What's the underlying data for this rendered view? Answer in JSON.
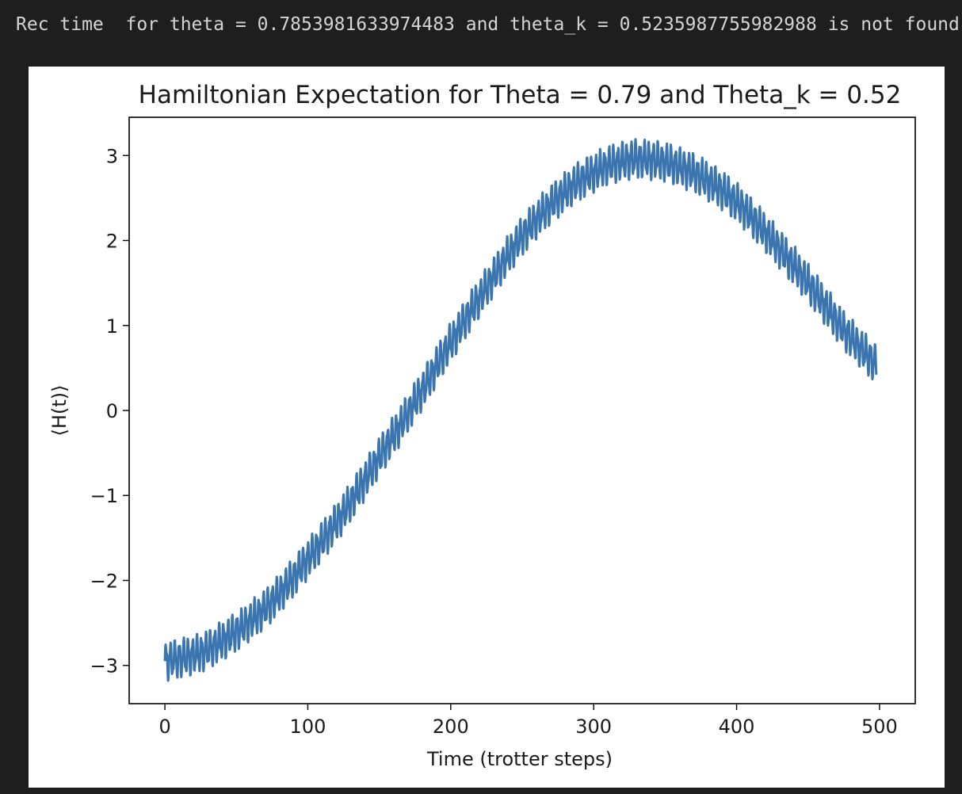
{
  "output": {
    "text": "Rec time  for theta = 0.7853981633974483 and theta_k = 0.5235987755982988 is not found"
  },
  "chart_data": {
    "type": "line",
    "title": "Hamiltonian Expectation for Theta = 0.79 and Theta_k = 0.52",
    "xlabel": "Time (trotter steps)",
    "ylabel": "⟨H(t)⟩",
    "xlim": [
      -25,
      525
    ],
    "ylim": [
      -3.45,
      3.45
    ],
    "xticks": [
      0,
      100,
      200,
      300,
      400,
      500
    ],
    "xtick_labels": [
      "0",
      "100",
      "200",
      "300",
      "400",
      "500"
    ],
    "yticks": [
      -3,
      -2,
      -1,
      0,
      1,
      2,
      3
    ],
    "ytick_labels": [
      "−3",
      "−2",
      "−1",
      "0",
      "1",
      "2",
      "3"
    ],
    "grid": false,
    "legend": false,
    "color": "#3b75af",
    "x": [
      0,
      25,
      50,
      75,
      100,
      125,
      150,
      175,
      200,
      225,
      250,
      275,
      300,
      325,
      350,
      375,
      400,
      425,
      450,
      475,
      500
    ],
    "y": [
      -2.95,
      -2.85,
      -2.6,
      -2.25,
      -1.75,
      -1.2,
      -0.55,
      0.1,
      0.8,
      1.45,
      2.05,
      2.5,
      2.8,
      2.95,
      2.92,
      2.75,
      2.45,
      2.0,
      1.5,
      0.95,
      0.5
    ],
    "oscillation_amplitude": 0.18
  }
}
